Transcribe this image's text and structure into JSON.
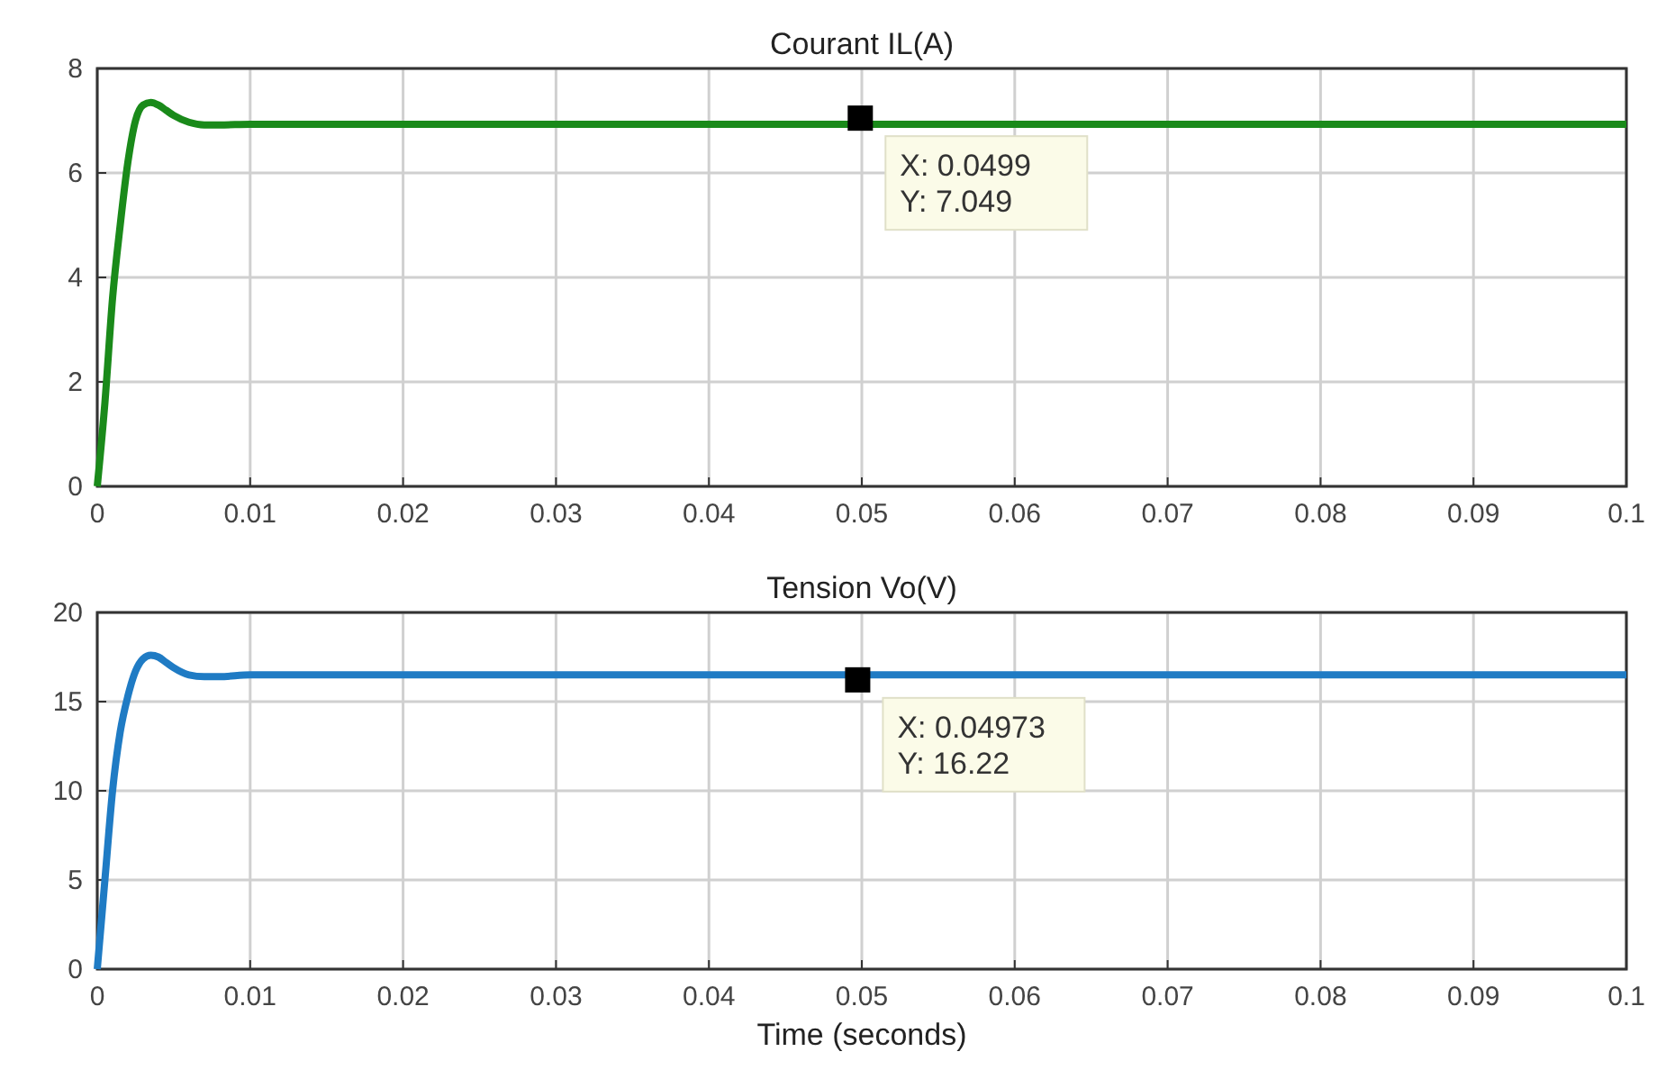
{
  "chart_data": [
    {
      "type": "line",
      "title": "Courant IL(A)",
      "x": [
        0,
        0.0005,
        0.001,
        0.0015,
        0.002,
        0.0025,
        0.003,
        0.0035,
        0.004,
        0.0045,
        0.005,
        0.006,
        0.007,
        0.008,
        0.01,
        0.02,
        0.04,
        0.06,
        0.08,
        0.1
      ],
      "series": [
        {
          "color": "#1a8a1a",
          "values": [
            0,
            1.6,
            3.6,
            5.0,
            6.2,
            7.0,
            7.3,
            7.35,
            7.3,
            7.2,
            7.1,
            6.97,
            6.92,
            6.92,
            6.93,
            6.93,
            6.93,
            6.93,
            6.93,
            6.93
          ]
        }
      ],
      "xlim": [
        0,
        0.1
      ],
      "xticks": [
        0,
        0.01,
        0.02,
        0.03,
        0.04,
        0.05,
        0.06,
        0.07,
        0.08,
        0.09,
        0.1
      ],
      "ylim": [
        0,
        8
      ],
      "yticks": [
        0,
        2,
        4,
        6,
        8
      ],
      "grid": true,
      "annotations": [
        {
          "text": "X: 0.0499\nY: 7.049",
          "x": 0.0499,
          "y": 7.049
        }
      ]
    },
    {
      "type": "line",
      "title": "Tension Vo(V)",
      "xlabel": "Time (seconds)",
      "x": [
        0,
        0.0005,
        0.001,
        0.0015,
        0.002,
        0.0025,
        0.003,
        0.0035,
        0.004,
        0.0045,
        0.005,
        0.006,
        0.007,
        0.008,
        0.01,
        0.02,
        0.04,
        0.06,
        0.08,
        0.1
      ],
      "series": [
        {
          "color": "#1f7bc4",
          "values": [
            0,
            5,
            10,
            13.3,
            15.3,
            16.7,
            17.4,
            17.6,
            17.5,
            17.2,
            16.9,
            16.5,
            16.4,
            16.4,
            16.5,
            16.5,
            16.5,
            16.5,
            16.5,
            16.5
          ]
        }
      ],
      "xlim": [
        0,
        0.1
      ],
      "xticks": [
        0,
        0.01,
        0.02,
        0.03,
        0.04,
        0.05,
        0.06,
        0.07,
        0.08,
        0.09,
        0.1
      ],
      "ylim": [
        0,
        20
      ],
      "yticks": [
        0,
        5,
        10,
        15,
        20
      ],
      "grid": true,
      "annotations": [
        {
          "text": "X: 0.04973\nY: 16.22",
          "x": 0.04973,
          "y": 16.22
        }
      ]
    }
  ]
}
